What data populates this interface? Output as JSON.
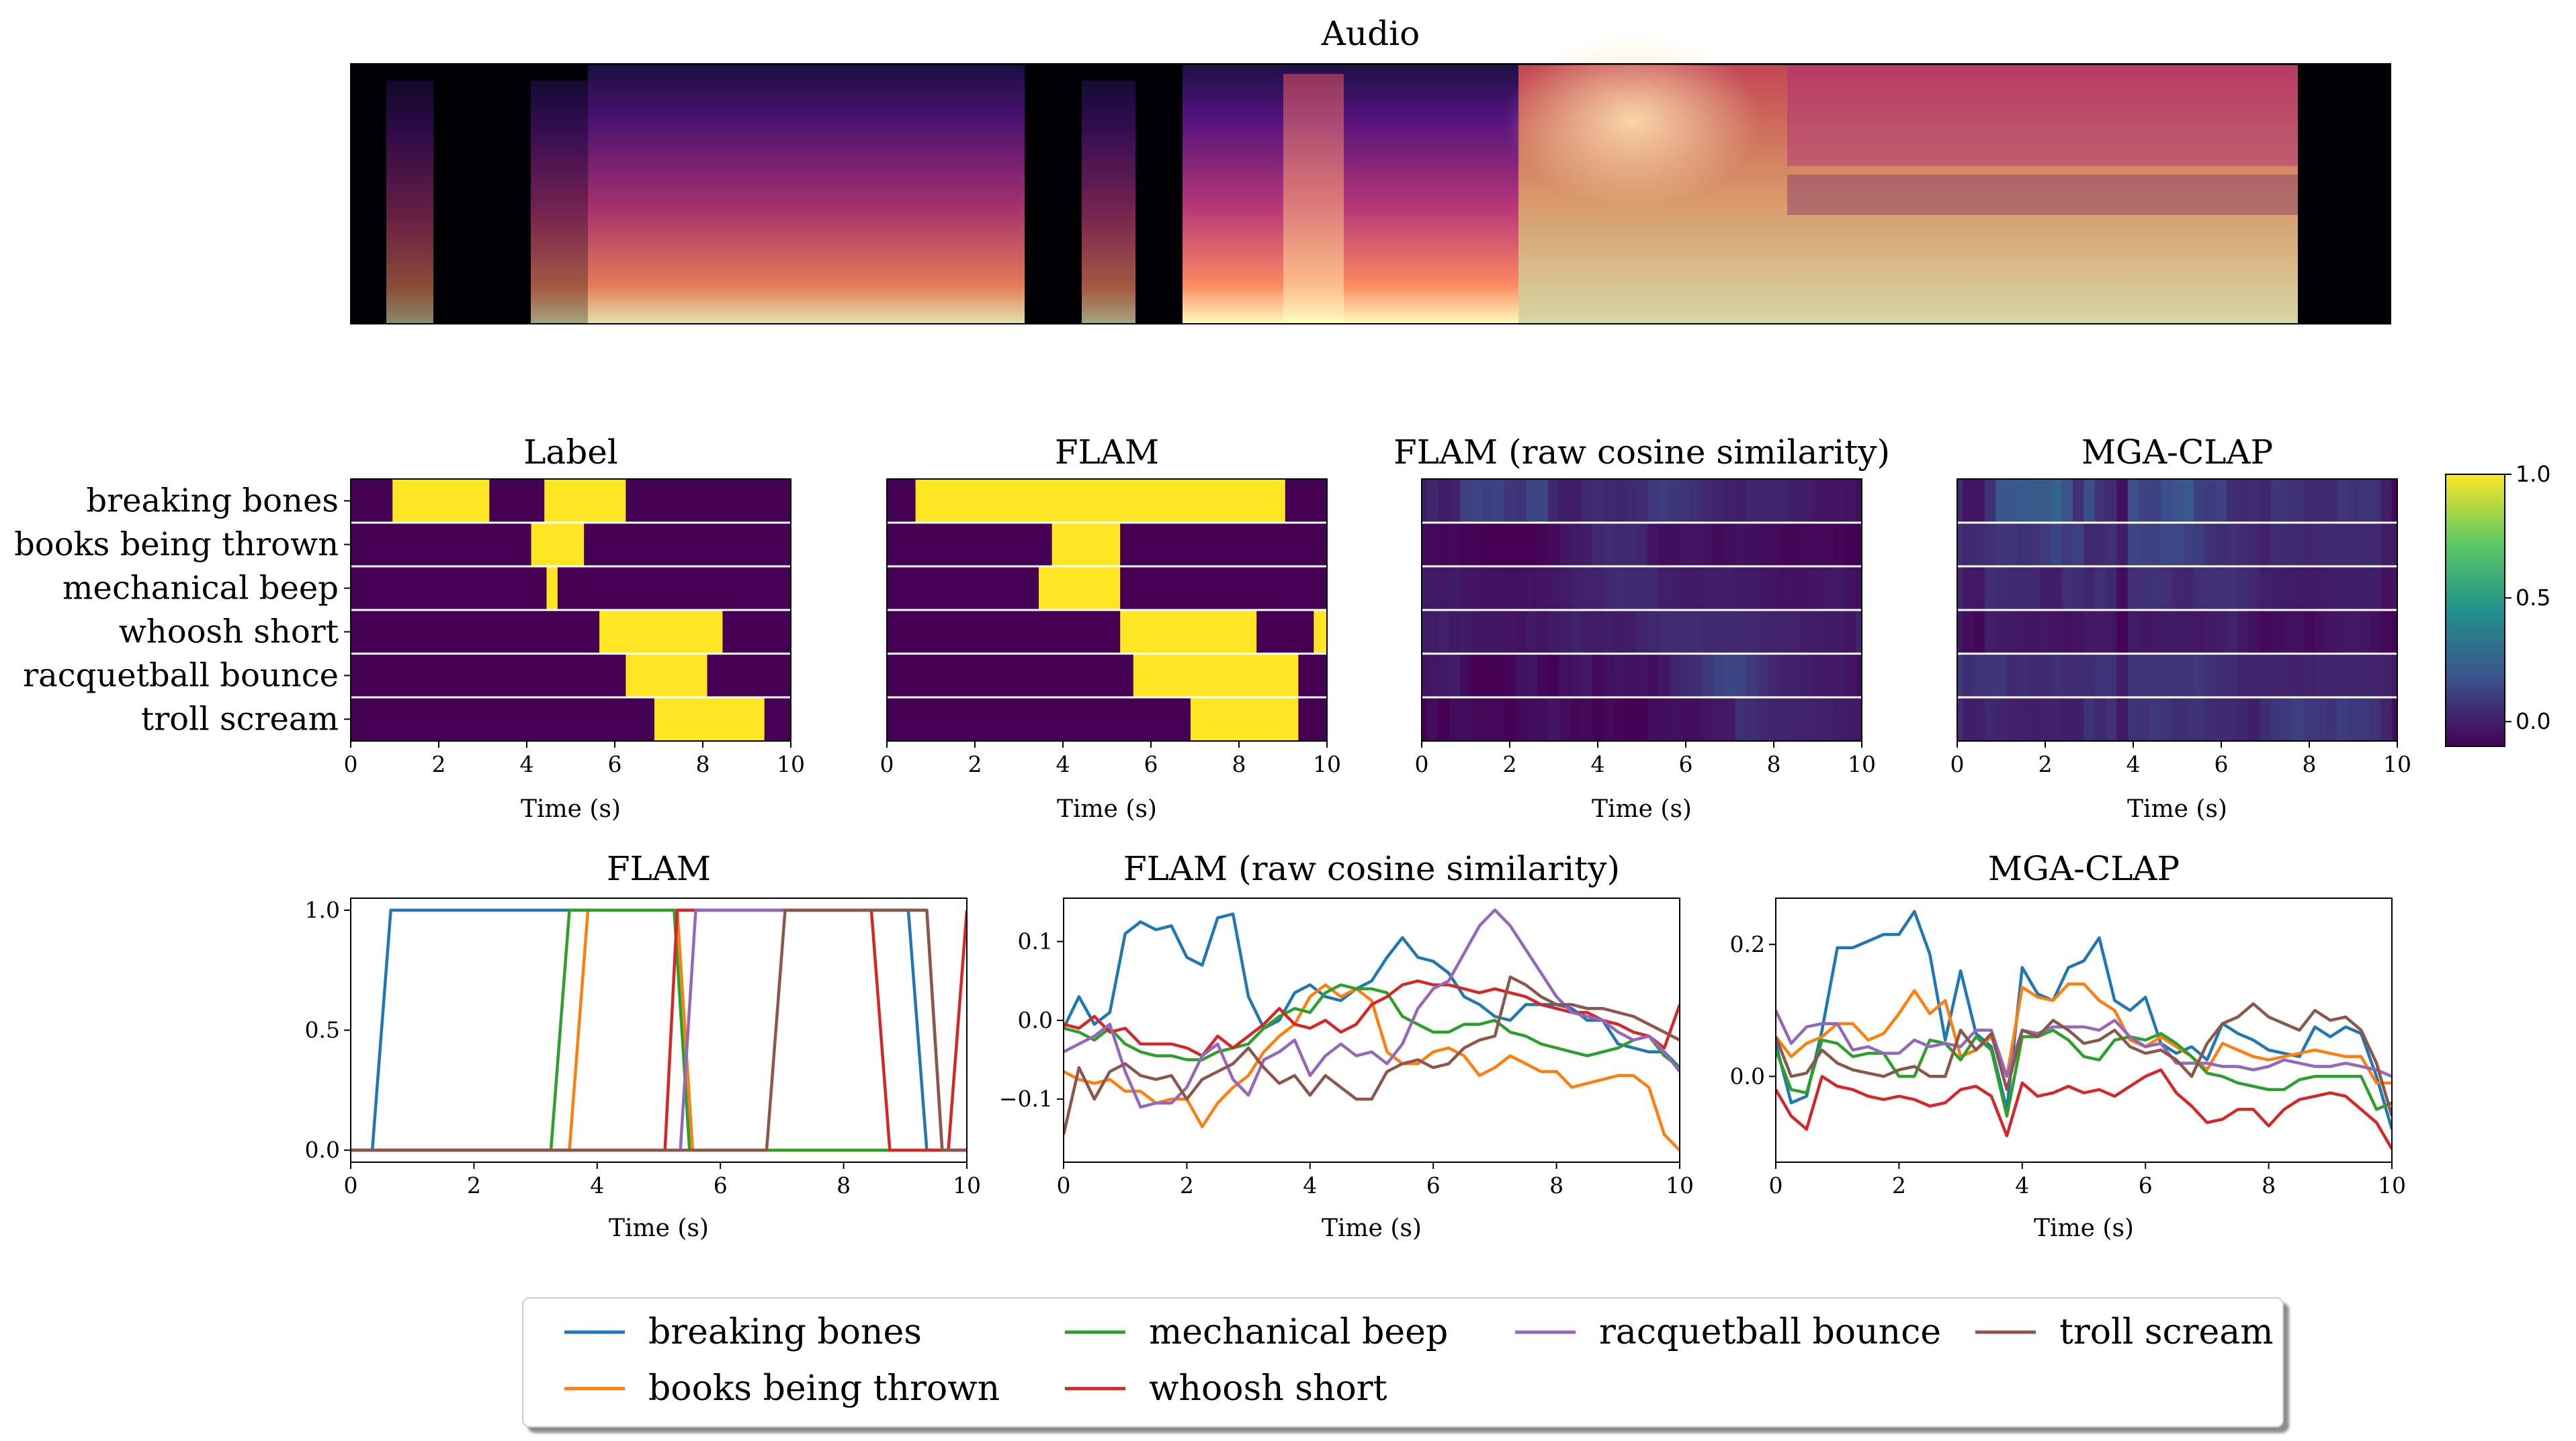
{
  "figure": {
    "audio_title": "Audio"
  },
  "classes": [
    "breaking bones",
    "books being thrown",
    "mechanical beep",
    "whoosh short",
    "racquetball bounce",
    "troll scream"
  ],
  "colors": {
    "series": [
      "#1f77b4",
      "#ff7f0e",
      "#2ca02c",
      "#d62728",
      "#9467bd",
      "#8c564b"
    ],
    "heat_low": "#440154",
    "heat_high": "#fde725"
  },
  "chart_data": [
    {
      "type": "heatmap",
      "title": "Label",
      "xlabel": "Time (s)",
      "xlim": [
        0,
        10
      ],
      "xticks": [
        "0",
        "2",
        "4",
        "6",
        "8",
        "10"
      ],
      "rows": [
        "breaking bones",
        "books being thrown",
        "mechanical beep",
        "whoosh short",
        "racquetball bounce",
        "troll scream"
      ],
      "active_intervals": [
        [
          [
            0.95,
            3.15
          ],
          [
            4.4,
            6.25
          ]
        ],
        [
          [
            4.1,
            5.3
          ]
        ],
        [
          [
            4.45,
            4.7
          ]
        ],
        [
          [
            5.65,
            8.45
          ]
        ],
        [
          [
            6.25,
            8.1
          ]
        ],
        [
          [
            6.9,
            9.4
          ]
        ]
      ]
    },
    {
      "type": "heatmap",
      "title": "FLAM",
      "xlabel": "Time (s)",
      "xlim": [
        0,
        10
      ],
      "xticks": [
        "0",
        "2",
        "4",
        "6",
        "8",
        "10"
      ],
      "rows": [
        "breaking bones",
        "books being thrown",
        "mechanical beep",
        "whoosh short",
        "racquetball bounce",
        "troll scream"
      ],
      "active_intervals": [
        [
          [
            0.65,
            9.05
          ]
        ],
        [
          [
            3.75,
            5.3
          ]
        ],
        [
          [
            3.45,
            5.3
          ]
        ],
        [
          [
            5.3,
            8.4
          ],
          [
            9.7,
            10.0
          ]
        ],
        [
          [
            5.6,
            9.35
          ]
        ],
        [
          [
            6.9,
            9.35
          ]
        ]
      ]
    },
    {
      "type": "heatmap",
      "title": "FLAM (raw cosine similarity)",
      "xlabel": "Time (s)",
      "xlim": [
        0,
        10
      ],
      "xticks": [
        "0",
        "2",
        "4",
        "6",
        "8",
        "10"
      ],
      "rows": [
        "breaking bones",
        "books being thrown",
        "mechanical beep",
        "whoosh short",
        "racquetball bounce",
        "troll scream"
      ],
      "source": "line_panel_2"
    },
    {
      "type": "heatmap",
      "title": "MGA-CLAP",
      "xlabel": "Time (s)",
      "xlim": [
        0,
        10
      ],
      "xticks": [
        "0",
        "2",
        "4",
        "6",
        "8",
        "10"
      ],
      "rows": [
        "breaking bones",
        "books being thrown",
        "mechanical beep",
        "whoosh short",
        "racquetball bounce",
        "troll scream"
      ],
      "source": "line_panel_3"
    },
    {
      "type": "colorbar",
      "ylim": [
        -0.1,
        1.0
      ],
      "ticks": [
        0.0,
        0.5,
        1.0
      ],
      "tick_labels": [
        "0.0",
        "0.5",
        "1.0"
      ]
    },
    {
      "type": "line",
      "title": "FLAM",
      "xlabel": "Time (s)",
      "xlim": [
        0,
        10
      ],
      "ylim": [
        -0.05,
        1.05
      ],
      "xticks": [
        "0",
        "2",
        "4",
        "6",
        "8",
        "10"
      ],
      "yticks": [
        0.0,
        0.5,
        1.0
      ],
      "ytick_labels": [
        "0.0",
        "0.5",
        "1.0"
      ],
      "series": [
        {
          "name": "breaking bones",
          "x": [
            0.35,
            0.65,
            9.05,
            9.35,
            10.0
          ],
          "y": [
            0.0,
            1.0,
            1.0,
            0.0,
            0.0
          ]
        },
        {
          "name": "books being thrown",
          "x": [
            0.0,
            3.55,
            3.85,
            5.3,
            5.55,
            10.0
          ],
          "y": [
            0.0,
            0.0,
            1.0,
            1.0,
            0.0,
            0.0
          ]
        },
        {
          "name": "mechanical beep",
          "x": [
            0.0,
            3.25,
            3.55,
            5.25,
            5.5,
            10.0
          ],
          "y": [
            0.0,
            0.0,
            1.0,
            1.0,
            0.0,
            0.0
          ]
        },
        {
          "name": "whoosh short",
          "x": [
            0.0,
            5.1,
            5.3,
            8.45,
            8.75,
            9.7,
            10.0
          ],
          "y": [
            0.0,
            0.0,
            1.0,
            1.0,
            0.0,
            0.0,
            1.0
          ]
        },
        {
          "name": "racquetball bounce",
          "x": [
            0.0,
            5.35,
            5.6,
            9.35,
            9.6,
            10.0
          ],
          "y": [
            0.0,
            0.0,
            1.0,
            1.0,
            0.0,
            0.0
          ]
        },
        {
          "name": "troll scream",
          "x": [
            0.0,
            6.75,
            7.05,
            9.35,
            9.6,
            10.0
          ],
          "y": [
            0.0,
            0.0,
            1.0,
            1.0,
            0.0,
            0.0
          ]
        }
      ]
    },
    {
      "type": "line",
      "title": "FLAM (raw cosine similarity)",
      "xlabel": "Time (s)",
      "xlim": [
        0,
        10
      ],
      "ylim": [
        -0.18,
        0.155
      ],
      "xticks": [
        "0",
        "2",
        "4",
        "6",
        "8",
        "10"
      ],
      "yticks": [
        -0.1,
        0.0,
        0.1
      ],
      "ytick_labels": [
        "−0.1",
        "0.0",
        "0.1"
      ],
      "x": [
        0.0,
        0.25,
        0.5,
        0.75,
        1.0,
        1.25,
        1.5,
        1.75,
        2.0,
        2.25,
        2.5,
        2.75,
        3.0,
        3.25,
        3.5,
        3.75,
        4.0,
        4.25,
        4.5,
        4.75,
        5.0,
        5.25,
        5.5,
        5.75,
        6.0,
        6.25,
        6.5,
        6.75,
        7.0,
        7.25,
        7.5,
        7.75,
        8.0,
        8.25,
        8.5,
        8.75,
        9.0,
        9.25,
        9.5,
        9.75,
        10.0
      ],
      "series": [
        {
          "name": "breaking bones",
          "values": [
            -0.01,
            0.03,
            -0.005,
            0.01,
            0.11,
            0.125,
            0.115,
            0.12,
            0.08,
            0.07,
            0.13,
            0.135,
            0.03,
            -0.01,
            0.0,
            0.035,
            0.045,
            0.03,
            0.025,
            0.04,
            0.05,
            0.08,
            0.105,
            0.08,
            0.075,
            0.06,
            0.03,
            0.02,
            0.005,
            0.0,
            0.02,
            0.02,
            0.02,
            0.015,
            0.0,
            0.0,
            -0.03,
            -0.035,
            -0.04,
            -0.04,
            -0.06
          ]
        },
        {
          "name": "books being thrown",
          "values": [
            -0.065,
            -0.075,
            -0.08,
            -0.075,
            -0.09,
            -0.09,
            -0.105,
            -0.1,
            -0.1,
            -0.135,
            -0.105,
            -0.085,
            -0.07,
            -0.04,
            -0.02,
            -0.005,
            0.03,
            0.045,
            0.03,
            0.04,
            0.025,
            -0.04,
            -0.055,
            -0.055,
            -0.04,
            -0.035,
            -0.045,
            -0.07,
            -0.06,
            -0.045,
            -0.055,
            -0.065,
            -0.065,
            -0.085,
            -0.08,
            -0.075,
            -0.07,
            -0.07,
            -0.085,
            -0.145,
            -0.165
          ]
        },
        {
          "name": "mechanical beep",
          "values": [
            -0.01,
            -0.015,
            -0.025,
            -0.01,
            -0.03,
            -0.04,
            -0.045,
            -0.045,
            -0.05,
            -0.05,
            -0.04,
            -0.035,
            -0.03,
            -0.01,
            0.005,
            0.015,
            0.01,
            0.035,
            0.045,
            0.04,
            0.04,
            0.035,
            0.005,
            -0.005,
            -0.015,
            -0.015,
            -0.005,
            -0.005,
            0.0,
            -0.015,
            -0.02,
            -0.03,
            -0.035,
            -0.04,
            -0.045,
            -0.04,
            -0.035,
            -0.025,
            -0.02,
            -0.045,
            -0.06
          ]
        },
        {
          "name": "whoosh short",
          "values": [
            -0.005,
            -0.01,
            0.005,
            -0.015,
            -0.01,
            -0.03,
            -0.03,
            -0.03,
            -0.035,
            -0.045,
            -0.02,
            -0.035,
            -0.02,
            -0.005,
            0.015,
            -0.005,
            -0.01,
            0.0,
            -0.015,
            -0.005,
            0.02,
            0.03,
            0.045,
            0.05,
            0.045,
            0.045,
            0.04,
            0.035,
            0.04,
            0.035,
            0.03,
            0.02,
            0.015,
            0.01,
            0.01,
            0.0,
            -0.005,
            -0.015,
            -0.02,
            -0.035,
            0.02
          ]
        },
        {
          "name": "racquetball bounce",
          "values": [
            -0.04,
            -0.03,
            -0.02,
            -0.005,
            -0.065,
            -0.11,
            -0.105,
            -0.105,
            -0.085,
            -0.045,
            -0.03,
            -0.075,
            -0.095,
            -0.05,
            -0.04,
            -0.025,
            -0.07,
            -0.045,
            -0.03,
            -0.045,
            -0.04,
            -0.055,
            -0.03,
            0.015,
            0.04,
            0.05,
            0.085,
            0.12,
            0.14,
            0.12,
            0.09,
            0.06,
            0.03,
            0.01,
            0.005,
            0.0,
            -0.015,
            -0.025,
            -0.02,
            -0.04,
            -0.065
          ]
        },
        {
          "name": "troll scream",
          "values": [
            -0.145,
            -0.06,
            -0.1,
            -0.065,
            -0.055,
            -0.07,
            -0.075,
            -0.07,
            -0.1,
            -0.075,
            -0.065,
            -0.055,
            -0.035,
            -0.06,
            -0.08,
            -0.07,
            -0.095,
            -0.07,
            -0.085,
            -0.1,
            -0.1,
            -0.065,
            -0.055,
            -0.05,
            -0.06,
            -0.055,
            -0.035,
            -0.025,
            -0.02,
            0.055,
            0.045,
            0.03,
            0.02,
            0.02,
            0.015,
            0.015,
            0.01,
            0.005,
            -0.005,
            -0.015,
            -0.025
          ]
        }
      ]
    },
    {
      "type": "line",
      "title": "MGA-CLAP",
      "xlabel": "Time (s)",
      "xlim": [
        0,
        10
      ],
      "ylim": [
        -0.13,
        0.27
      ],
      "xticks": [
        "0",
        "2",
        "4",
        "6",
        "8",
        "10"
      ],
      "yticks": [
        0.0,
        0.2
      ],
      "ytick_labels": [
        "0.0",
        "0.2"
      ],
      "x": [
        0.0,
        0.25,
        0.5,
        0.75,
        1.0,
        1.25,
        1.5,
        1.75,
        2.0,
        2.25,
        2.5,
        2.75,
        3.0,
        3.25,
        3.5,
        3.75,
        4.0,
        4.25,
        4.5,
        4.75,
        5.0,
        5.25,
        5.5,
        5.75,
        6.0,
        6.25,
        6.5,
        6.75,
        7.0,
        7.25,
        7.5,
        7.75,
        8.0,
        8.25,
        8.5,
        8.75,
        9.0,
        9.25,
        9.5,
        9.75,
        10.0
      ],
      "series": [
        {
          "name": "breaking bones",
          "values": [
            0.05,
            -0.04,
            -0.03,
            0.07,
            0.195,
            0.195,
            0.205,
            0.215,
            0.215,
            0.25,
            0.185,
            0.055,
            0.16,
            0.065,
            0.045,
            -0.05,
            0.165,
            0.125,
            0.115,
            0.165,
            0.175,
            0.21,
            0.115,
            0.1,
            0.12,
            0.05,
            0.035,
            0.045,
            0.025,
            0.08,
            0.065,
            0.055,
            0.04,
            0.035,
            0.03,
            0.075,
            0.06,
            0.075,
            0.065,
            0.0,
            -0.08
          ]
        },
        {
          "name": "books being thrown",
          "values": [
            0.06,
            0.03,
            0.05,
            0.06,
            0.08,
            0.08,
            0.055,
            0.065,
            0.095,
            0.13,
            0.095,
            0.115,
            0.03,
            0.04,
            0.06,
            0.0,
            0.135,
            0.12,
            0.115,
            0.14,
            0.14,
            0.115,
            0.1,
            0.055,
            0.045,
            0.06,
            0.045,
            0.03,
            0.01,
            0.05,
            0.04,
            0.03,
            0.025,
            0.03,
            0.035,
            0.04,
            0.035,
            0.03,
            0.03,
            -0.01,
            -0.01
          ]
        },
        {
          "name": "mechanical beep",
          "values": [
            0.04,
            -0.02,
            -0.025,
            0.055,
            0.05,
            0.03,
            0.035,
            0.035,
            0.0,
            0.0,
            0.055,
            0.05,
            0.025,
            0.06,
            0.04,
            -0.06,
            0.06,
            0.06,
            0.07,
            0.055,
            0.03,
            0.025,
            0.055,
            0.06,
            0.055,
            0.065,
            0.05,
            0.03,
            0.005,
            0.0,
            -0.01,
            -0.015,
            -0.02,
            -0.02,
            -0.005,
            0.0,
            0.0,
            0.0,
            0.0,
            -0.05,
            -0.04
          ]
        },
        {
          "name": "whoosh short",
          "values": [
            -0.02,
            -0.06,
            -0.08,
            0.0,
            -0.015,
            -0.02,
            -0.03,
            -0.035,
            -0.03,
            -0.035,
            -0.045,
            -0.04,
            -0.02,
            -0.015,
            -0.03,
            -0.09,
            -0.01,
            -0.03,
            -0.025,
            -0.015,
            -0.025,
            -0.02,
            -0.03,
            -0.015,
            0.0,
            0.01,
            -0.025,
            -0.045,
            -0.07,
            -0.065,
            -0.05,
            -0.05,
            -0.075,
            -0.05,
            -0.035,
            -0.03,
            -0.025,
            -0.03,
            -0.05,
            -0.07,
            -0.11
          ]
        },
        {
          "name": "racquetball bounce",
          "values": [
            0.1,
            0.05,
            0.075,
            0.08,
            0.08,
            0.04,
            0.045,
            0.035,
            0.035,
            0.055,
            0.045,
            0.05,
            0.045,
            0.07,
            0.07,
            0.0,
            0.07,
            0.065,
            0.075,
            0.075,
            0.075,
            0.07,
            0.085,
            0.06,
            0.045,
            0.05,
            0.02,
            0.02,
            0.02,
            0.015,
            0.015,
            0.01,
            0.015,
            0.025,
            0.02,
            0.015,
            0.015,
            0.02,
            0.015,
            0.01,
            0.0
          ]
        },
        {
          "name": "troll scream",
          "values": [
            0.06,
            0.0,
            0.005,
            0.04,
            0.02,
            0.01,
            0.005,
            0.0,
            0.01,
            0.015,
            0.0,
            0.0,
            0.07,
            0.04,
            0.065,
            -0.02,
            0.07,
            0.06,
            0.085,
            0.07,
            0.05,
            0.055,
            0.07,
            0.045,
            0.035,
            0.04,
            0.025,
            0.0,
            0.05,
            0.08,
            0.09,
            0.11,
            0.09,
            0.08,
            0.07,
            0.1,
            0.085,
            0.09,
            0.07,
            0.02,
            -0.06
          ]
        }
      ]
    }
  ]
}
